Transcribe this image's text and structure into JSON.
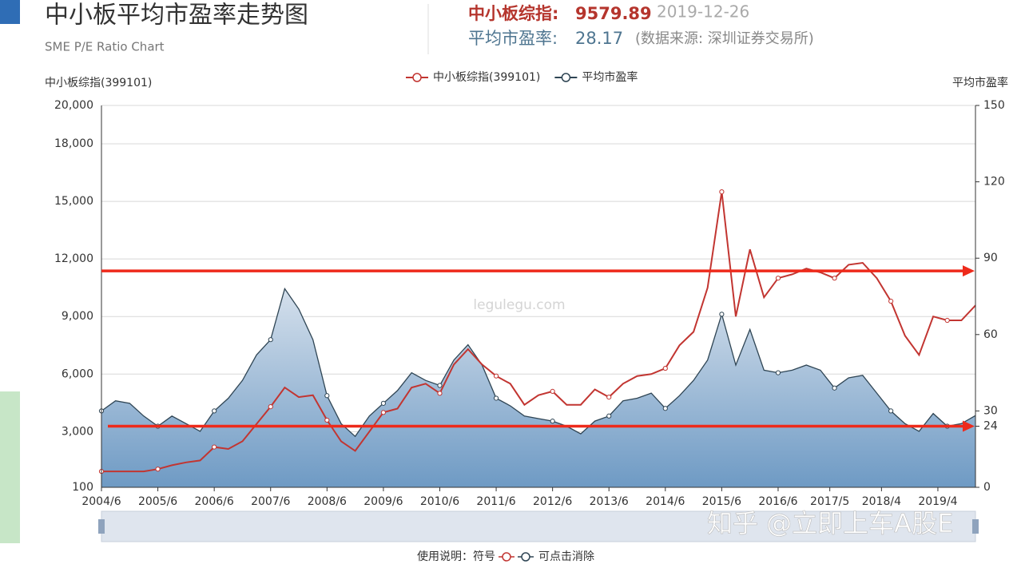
{
  "header": {
    "title": "中小板平均市盈率走势图",
    "subtitle": "SME P/E Ratio Chart",
    "index_label": "中小板综指:",
    "index_value": 9579.89,
    "date": "2019-12-26",
    "pe_label": "平均市盈率:",
    "pe_value": 28.17,
    "source": "(数据来源: 深圳证券交易所)"
  },
  "chart_data": {
    "type": "line",
    "ylabel": "中小板综指(399101)",
    "y2label": "平均市盈率",
    "x": [
      "2004/6",
      "2004/9",
      "2004/12",
      "2005/3",
      "2005/6",
      "2005/9",
      "2005/12",
      "2006/3",
      "2006/6",
      "2006/9",
      "2006/12",
      "2007/3",
      "2007/6",
      "2007/9",
      "2007/12",
      "2008/3",
      "2008/6",
      "2008/9",
      "2008/12",
      "2009/3",
      "2009/6",
      "2009/9",
      "2009/12",
      "2010/3",
      "2010/6",
      "2010/9",
      "2010/12",
      "2011/3",
      "2011/6",
      "2011/9",
      "2011/12",
      "2012/3",
      "2012/6",
      "2012/9",
      "2012/12",
      "2013/3",
      "2013/6",
      "2013/9",
      "2013/12",
      "2014/3",
      "2014/6",
      "2014/9",
      "2014/12",
      "2015/3",
      "2015/6",
      "2015/9",
      "2015/12",
      "2016/3",
      "2016/6",
      "2016/9",
      "2016/12",
      "2017/3",
      "2017/6",
      "2017/9",
      "2017/12",
      "2018/3",
      "2018/6",
      "2018/9",
      "2018/12",
      "2019/3",
      "2019/6",
      "2019/9",
      "2019/12"
    ],
    "series": [
      {
        "name": "中小板综指(399101)",
        "color": "#c23531",
        "axis": "y",
        "values": [
          930,
          930,
          930,
          930,
          1050,
          1250,
          1400,
          1500,
          2200,
          2100,
          2500,
          3400,
          4300,
          5300,
          4800,
          4900,
          3600,
          2500,
          2000,
          3000,
          4000,
          4200,
          5300,
          5500,
          5000,
          6500,
          7300,
          6500,
          5900,
          5500,
          4400,
          4900,
          5100,
          4400,
          4400,
          5200,
          4800,
          5500,
          5900,
          6000,
          6300,
          7500,
          8200,
          10500,
          15500,
          9000,
          12500,
          10000,
          11000,
          11200,
          11500,
          11300,
          11000,
          11700,
          11800,
          11000,
          9800,
          8000,
          7000,
          9000,
          8800,
          8800,
          9580
        ]
      },
      {
        "name": "平均市盈率",
        "color": "#2f4554",
        "axis": "y2",
        "values": [
          30,
          34,
          33,
          28,
          24,
          28,
          25,
          22,
          30,
          35,
          42,
          52,
          58,
          78,
          70,
          58,
          36,
          25,
          20,
          28,
          33,
          38,
          45,
          42,
          40,
          50,
          56,
          48,
          35,
          32,
          28,
          27,
          26,
          24,
          21,
          26,
          28,
          34,
          35,
          37,
          31,
          36,
          42,
          50,
          68,
          48,
          62,
          46,
          45,
          46,
          48,
          46,
          39,
          43,
          44,
          37,
          30,
          25,
          22,
          29,
          24,
          25,
          28.17
        ]
      }
    ],
    "xlim": [
      "2004/6",
      "2019/12"
    ],
    "xticks": [
      "2004/6",
      "2005/6",
      "2006/6",
      "2007/6",
      "2008/6",
      "2009/6",
      "2010/6",
      "2011/6",
      "2012/6",
      "2013/6",
      "2014/6",
      "2015/6",
      "2016/6",
      "2017/5",
      "2018/4",
      "2019/4"
    ],
    "ylim": [
      100,
      20000
    ],
    "yticks": [
      100,
      {
        "value": 3000,
        "label": "3,000"
      },
      {
        "value": 6000,
        "label": "6,000"
      },
      {
        "value": 9000,
        "label": "9,000"
      },
      {
        "value": 12000,
        "label": "12,000"
      },
      {
        "value": 15000,
        "label": "15,000"
      },
      {
        "value": 18000,
        "label": "18,000"
      },
      {
        "value": 20000,
        "label": "20,000"
      }
    ],
    "y2lim": [
      0,
      150
    ],
    "y2ticks": [
      0,
      24,
      30,
      60,
      90,
      120,
      150
    ],
    "reference_lines": [
      85,
      24
    ],
    "reference_color": "#ee2a1b",
    "grid": true,
    "watermark": "legulegu.com",
    "footer": "使用说明：符号",
    "footer_end": "可点击消除",
    "credit": "知乎 @立即上车A股E"
  }
}
